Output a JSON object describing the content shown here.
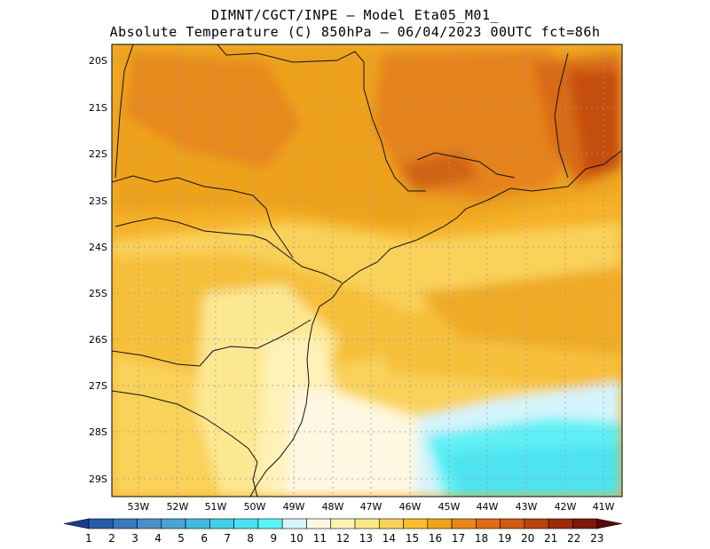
{
  "header": {
    "line1": "DIMNT/CGCT/INPE –  Model Eta05_M01_",
    "line2": "Absolute Temperature (C) 850hPa –  06/04/2023 00UTC fct=86h"
  },
  "map": {
    "lat_labels": [
      "20S",
      "21S",
      "22S",
      "23S",
      "24S",
      "25S",
      "26S",
      "27S",
      "28S",
      "29S"
    ],
    "lon_labels": [
      "53W",
      "52W",
      "51W",
      "50W",
      "49W",
      "48W",
      "47W",
      "46W",
      "45W",
      "44W",
      "43W",
      "42W",
      "41W"
    ]
  },
  "colorbar": {
    "labels": [
      "1",
      "2",
      "3",
      "4",
      "5",
      "6",
      "7",
      "8",
      "9",
      "10",
      "11",
      "12",
      "13",
      "14",
      "15",
      "16",
      "17",
      "18",
      "19",
      "20",
      "21",
      "22",
      "23"
    ],
    "colors": [
      "#1c3d8c",
      "#2a5ba8",
      "#3a79bb",
      "#4a8fc9",
      "#4aa3d6",
      "#44b8e0",
      "#44cde8",
      "#4ee0f0",
      "#5af4f8",
      "#d6f6fb",
      "#fff6e6",
      "#fff4b3",
      "#fde787",
      "#f9d25a",
      "#f6bd2f",
      "#f0a21a",
      "#e8861d",
      "#e06a18",
      "#cf5a12",
      "#b8420e",
      "#9e2a0b",
      "#7e1809",
      "#5a0807"
    ]
  }
}
